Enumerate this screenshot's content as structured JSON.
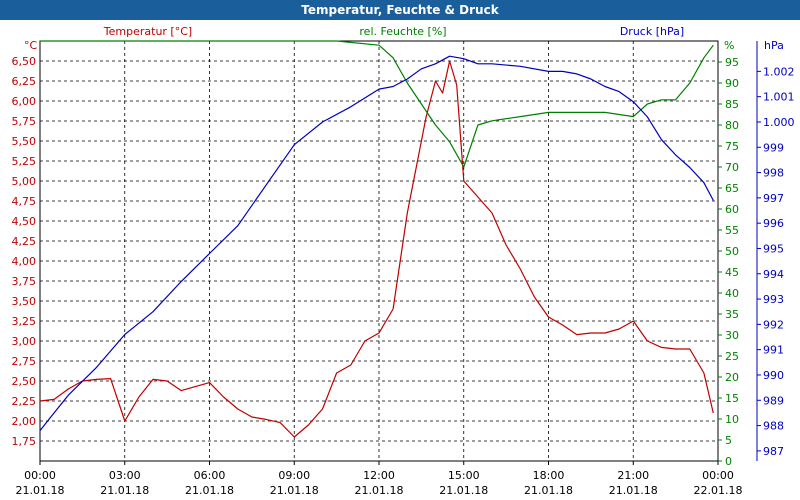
{
  "window": {
    "title": "Temperatur, Feuchte & Druck"
  },
  "legend": {
    "temp": "Temperatur [°C]",
    "hum": "rel. Feuchte [%]",
    "press": "Druck [hPa]"
  },
  "units": {
    "temp": "°C",
    "hum": "%",
    "press": "hPa"
  },
  "colors": {
    "temp": "#c00000",
    "hum": "#008000",
    "press": "#0000c0",
    "title": "#1a5f9c"
  },
  "chart_data": {
    "type": "line",
    "title": "Temperatur, Feuchte & Druck",
    "grid": true,
    "x_ticks": [
      {
        "time": "00:00",
        "date": "21.01.18"
      },
      {
        "time": "03:00",
        "date": "21.01.18"
      },
      {
        "time": "06:00",
        "date": "21.01.18"
      },
      {
        "time": "09:00",
        "date": "21.01.18"
      },
      {
        "time": "12:00",
        "date": "21.01.18"
      },
      {
        "time": "15:00",
        "date": "21.01.18"
      },
      {
        "time": "18:00",
        "date": "21.01.18"
      },
      {
        "time": "21:00",
        "date": "21.01.18"
      },
      {
        "time": "00:00",
        "date": "22.01.18"
      }
    ],
    "xlim": [
      "21.01.18 00:00",
      "22.01.18 00:00"
    ],
    "y_left": {
      "label": "°C",
      "range": [
        1.5,
        6.75
      ],
      "ticks": [
        "1,75",
        "2,00",
        "2,25",
        "2,50",
        "2,75",
        "3,00",
        "3,25",
        "3,50",
        "3,75",
        "4,00",
        "4,25",
        "4,50",
        "4,75",
        "5,00",
        "5,25",
        "5,50",
        "5,75",
        "6,00",
        "6,25",
        "6,50"
      ]
    },
    "y_mid": {
      "label": "%",
      "range": [
        0,
        100
      ],
      "ticks": [
        "0",
        "5",
        "10",
        "15",
        "20",
        "25",
        "30",
        "35",
        "40",
        "45",
        "50",
        "55",
        "60",
        "65",
        "70",
        "75",
        "80",
        "85",
        "90",
        "95"
      ]
    },
    "y_right": {
      "label": "hPa",
      "range": [
        986.6,
        1003.2
      ],
      "ticks": [
        "987",
        "988",
        "989",
        "990",
        "991",
        "992",
        "993",
        "994",
        "995",
        "996",
        "997",
        "998",
        "999",
        "1.000",
        "1.001",
        "1.002"
      ]
    },
    "series": [
      {
        "name": "Temperatur [°C]",
        "axis": "left",
        "x": [
          "00:00",
          "00:30",
          "01:00",
          "01:30",
          "02:00",
          "02:30",
          "03:00",
          "03:30",
          "04:00",
          "04:30",
          "05:00",
          "05:30",
          "06:00",
          "06:30",
          "07:00",
          "07:30",
          "08:00",
          "08:30",
          "09:00",
          "09:30",
          "10:00",
          "10:30",
          "11:00",
          "11:30",
          "12:00",
          "12:30",
          "13:00",
          "13:20",
          "13:40",
          "14:00",
          "14:15",
          "14:30",
          "14:45",
          "15:00",
          "15:30",
          "16:00",
          "16:30",
          "17:00",
          "17:30",
          "18:00",
          "18:30",
          "19:00",
          "19:30",
          "20:00",
          "20:30",
          "21:00",
          "21:30",
          "22:00",
          "22:30",
          "23:00",
          "23:30",
          "23:50"
        ],
        "values": [
          2.25,
          2.27,
          2.4,
          2.5,
          2.52,
          2.53,
          2.0,
          2.3,
          2.52,
          2.5,
          2.38,
          2.43,
          2.48,
          2.3,
          2.15,
          2.05,
          2.02,
          1.98,
          1.8,
          1.95,
          2.15,
          2.6,
          2.7,
          3.0,
          3.1,
          3.4,
          4.6,
          5.2,
          5.8,
          6.25,
          6.1,
          6.5,
          6.2,
          5.0,
          4.8,
          4.6,
          4.2,
          3.9,
          3.55,
          3.3,
          3.2,
          3.08,
          3.1,
          3.1,
          3.15,
          3.25,
          3.0,
          2.92,
          2.9,
          2.9,
          2.6,
          2.1
        ]
      },
      {
        "name": "rel. Feuchte [%]",
        "axis": "mid",
        "x": [
          "00:00",
          "06:00",
          "09:00",
          "10:30",
          "12:00",
          "12:30",
          "13:00",
          "13:30",
          "14:00",
          "14:30",
          "14:45",
          "15:00",
          "15:30",
          "16:00",
          "17:00",
          "18:00",
          "19:00",
          "20:00",
          "21:00",
          "21:30",
          "22:00",
          "22:30",
          "23:00",
          "23:30",
          "23:50"
        ],
        "values": [
          100,
          100,
          100,
          100,
          99,
          96,
          90,
          85,
          80,
          76,
          73,
          70,
          80,
          81,
          82,
          83,
          83,
          83,
          82,
          85,
          86,
          86,
          90,
          96,
          99
        ]
      },
      {
        "name": "Druck [hPa]",
        "axis": "right",
        "x": [
          "00:00",
          "00:30",
          "01:00",
          "02:00",
          "03:00",
          "04:00",
          "05:00",
          "06:00",
          "07:00",
          "08:00",
          "09:00",
          "10:00",
          "11:00",
          "12:00",
          "12:30",
          "13:00",
          "13:30",
          "14:00",
          "14:30",
          "15:00",
          "15:30",
          "16:00",
          "17:00",
          "18:00",
          "18:30",
          "19:00",
          "19:30",
          "20:00",
          "20:30",
          "21:00",
          "21:30",
          "22:00",
          "22:30",
          "23:00",
          "23:30",
          "23:50"
        ],
        "values": [
          987.8,
          988.5,
          989.2,
          990.3,
          991.6,
          992.5,
          993.7,
          994.8,
          995.9,
          997.5,
          999.1,
          1000.0,
          1000.6,
          1001.3,
          1001.4,
          1001.7,
          1002.1,
          1002.3,
          1002.6,
          1002.5,
          1002.3,
          1002.3,
          1002.2,
          1002.0,
          1002.0,
          1001.9,
          1001.7,
          1001.4,
          1001.2,
          1000.8,
          1000.2,
          999.3,
          998.7,
          998.2,
          997.6,
          996.9
        ]
      }
    ]
  }
}
